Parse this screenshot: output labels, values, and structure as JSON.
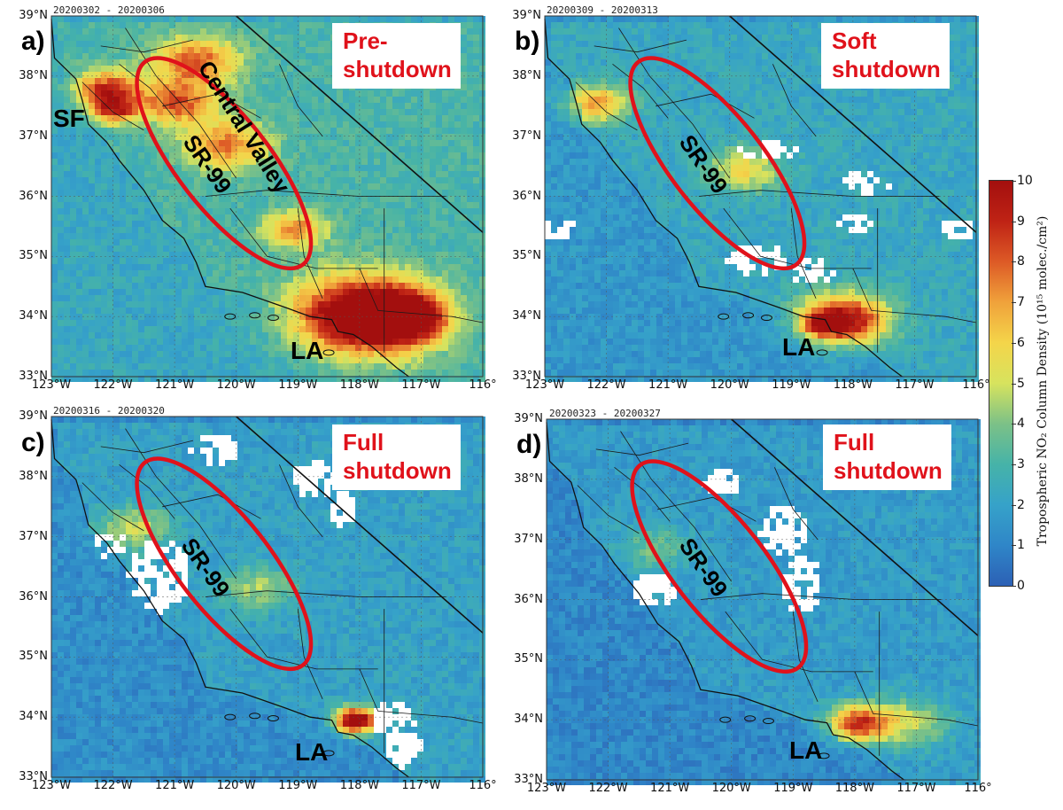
{
  "panels": [
    {
      "id": "a",
      "date": "20200302 - 20200306",
      "letter": "a)",
      "title": [
        "Pre-",
        "shutdown"
      ],
      "labels": [
        "Central Valley",
        "SR-99",
        "SF",
        "LA"
      ],
      "lat_labels": [
        "39°N",
        "38°N",
        "37°N",
        "36°N",
        "35°N",
        "34°N",
        "33°N"
      ],
      "lon_labels": [
        "123°W",
        "122°W",
        "121°W",
        "120°W",
        "119°W",
        "118°W",
        "117°W",
        "116°"
      ],
      "no2_level": "high"
    },
    {
      "id": "b",
      "date": "20200309 - 20200313",
      "letter": "b)",
      "title": [
        "Soft",
        "shutdown"
      ],
      "labels": [
        "SR-99",
        "LA"
      ],
      "lat_labels": [
        "39°N",
        "38°N",
        "37°N",
        "36°N",
        "35°N",
        "34°N",
        "33°N"
      ],
      "lon_labels": [
        "123°W",
        "122°W",
        "121°W",
        "120°W",
        "119°W",
        "118°W",
        "117°W",
        "116°"
      ],
      "no2_level": "medium"
    },
    {
      "id": "c",
      "date": "20200316 - 20200320",
      "letter": "c)",
      "title": [
        "Full",
        "shutdown"
      ],
      "labels": [
        "SR-99",
        "LA"
      ],
      "lat_labels": [
        "39°N",
        "38°N",
        "37°N",
        "36°N",
        "35°N",
        "34°N",
        "33°N"
      ],
      "lon_labels": [
        "123°W",
        "122°W",
        "121°W",
        "120°W",
        "119°W",
        "118°W",
        "117°W",
        "116°"
      ],
      "no2_level": "low"
    },
    {
      "id": "d",
      "date": "20200323 - 20200327",
      "letter": "d)",
      "title": [
        "Full",
        "shutdown"
      ],
      "labels": [
        "SR-99",
        "LA"
      ],
      "lat_labels": [
        "39°N",
        "38°N",
        "37°N",
        "36°N",
        "35°N",
        "34°N",
        "33°N"
      ],
      "lon_labels": [
        "123°W",
        "122°W",
        "121°W",
        "120°W",
        "119°W",
        "118°W",
        "117°W",
        "116°"
      ],
      "no2_level": "lowest"
    }
  ],
  "colorbar": {
    "label": "Tropospheric NO₂ Column Density (10¹⁵ molec./cm²)",
    "ticks": [
      "0",
      "1",
      "2",
      "3",
      "4",
      "5",
      "6",
      "7",
      "8",
      "9",
      "10"
    ],
    "min": 0,
    "max": 10,
    "colors": {
      "low": "#2c60b5",
      "mid": "#d7e35e",
      "high": "#a30f0e",
      "ellipse": "#e0121b",
      "missing": "#ffffff"
    }
  }
}
